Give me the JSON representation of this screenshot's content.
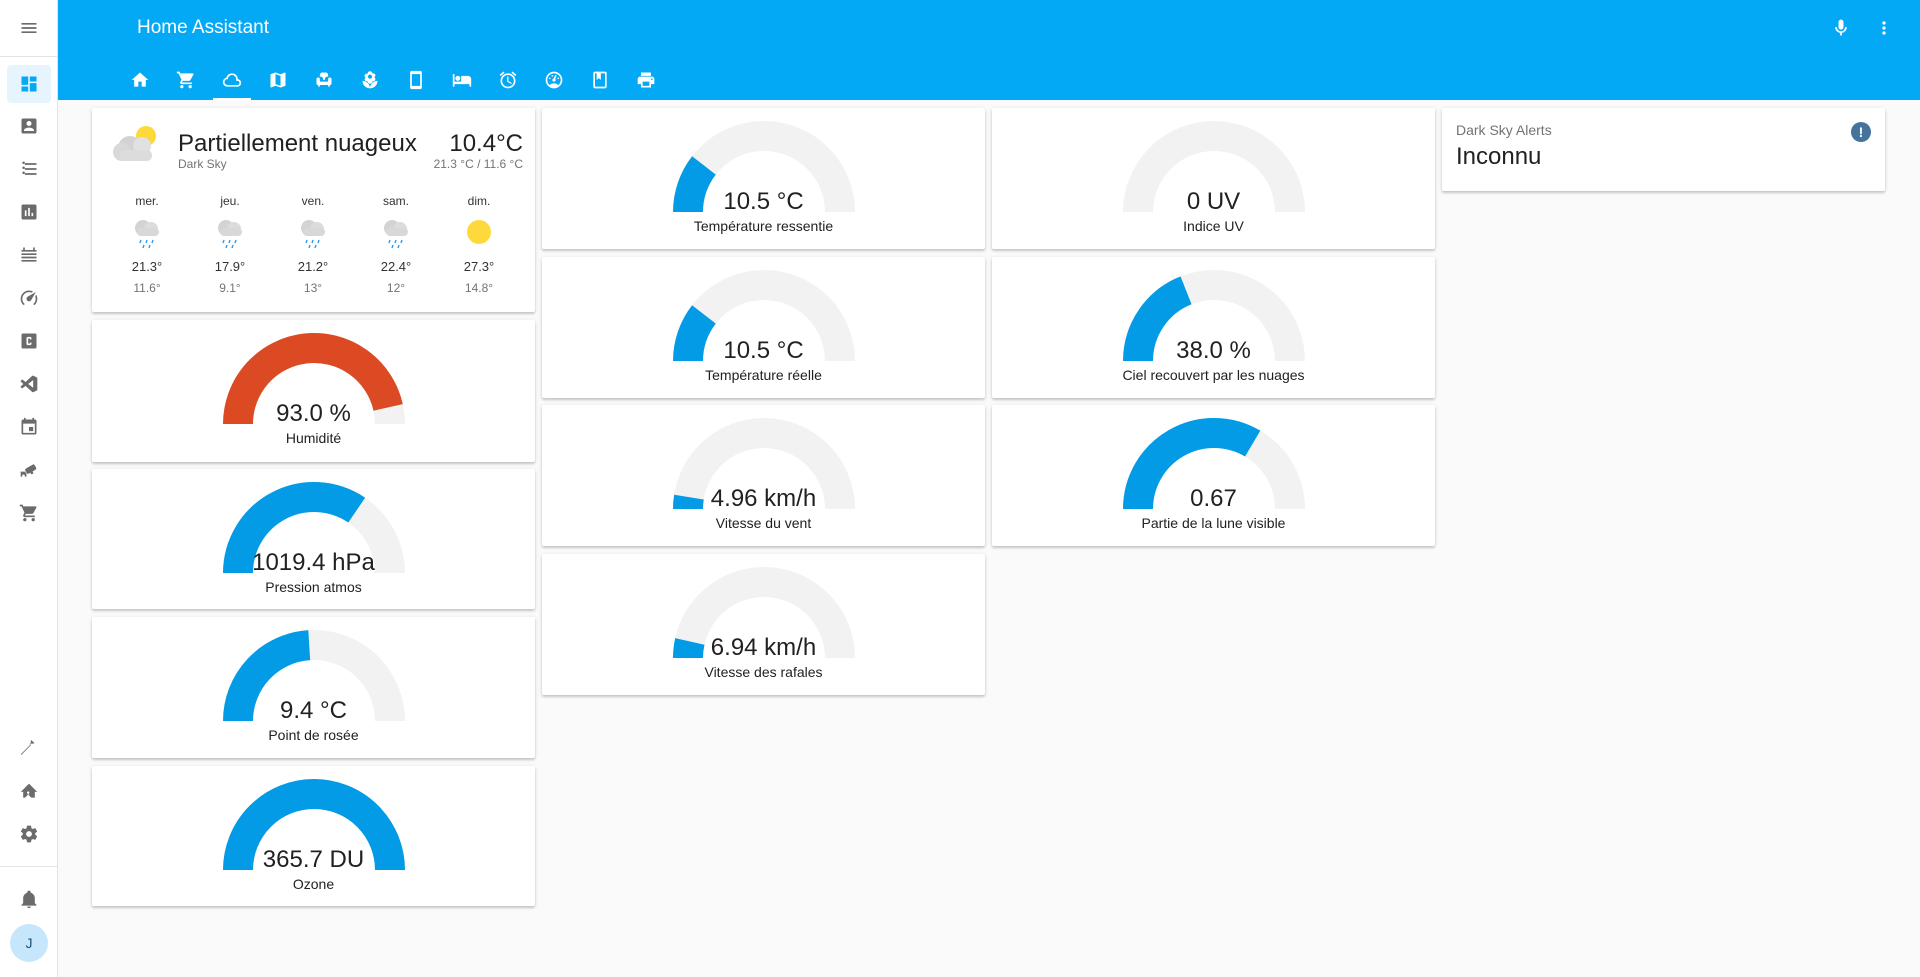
{
  "app": {
    "title": "Home Assistant"
  },
  "sidebar": {
    "items": [
      {
        "icon": "dashboard-icon"
      },
      {
        "icon": "account-box-icon"
      },
      {
        "icon": "list-icon"
      },
      {
        "icon": "chart-bar-icon"
      },
      {
        "icon": "memory-icon"
      },
      {
        "icon": "speedometer-icon"
      },
      {
        "icon": "alpha-c-box-icon"
      },
      {
        "icon": "vscode-icon"
      },
      {
        "icon": "calendar-icon"
      },
      {
        "icon": "cctv-icon"
      },
      {
        "icon": "cart-icon"
      }
    ],
    "bottom_items": [
      {
        "icon": "hammer-icon"
      },
      {
        "icon": "home-assistant-icon"
      },
      {
        "icon": "settings-icon"
      },
      {
        "icon": "bell-icon"
      }
    ],
    "user_initial": "J"
  },
  "header": {
    "tabs": [
      {
        "icon": "home-icon"
      },
      {
        "icon": "cart-icon"
      },
      {
        "icon": "cloud-icon",
        "active": true
      },
      {
        "icon": "map-icon"
      },
      {
        "icon": "sofa-icon"
      },
      {
        "icon": "flower-icon"
      },
      {
        "icon": "cellphone-icon"
      },
      {
        "icon": "bed-icon"
      },
      {
        "icon": "alarm-icon"
      },
      {
        "icon": "gauge-icon"
      },
      {
        "icon": "book-icon"
      },
      {
        "icon": "printer-icon"
      }
    ]
  },
  "weather": {
    "state": "Partiellement nuageux",
    "source": "Dark Sky",
    "temperature": "10.4°C",
    "hilo": "21.3 °C / 11.6 °C",
    "forecast": [
      {
        "day": "mer.",
        "icon": "rainy-icon",
        "high": "21.3°",
        "low": "11.6°"
      },
      {
        "day": "jeu.",
        "icon": "rainy-icon",
        "high": "17.9°",
        "low": "9.1°"
      },
      {
        "day": "ven.",
        "icon": "rainy-icon",
        "high": "21.2°",
        "low": "13°"
      },
      {
        "day": "sam.",
        "icon": "rainy-icon",
        "high": "22.4°",
        "low": "12°"
      },
      {
        "day": "dim.",
        "icon": "sunny-icon",
        "high": "27.3°",
        "low": "14.8°"
      }
    ]
  },
  "gauges": {
    "humidite": {
      "value": "93.0 %",
      "label": "Humidité",
      "fraction": 0.93,
      "color": "#db4a22"
    },
    "pression": {
      "value": "1019.4 hPa",
      "label": "Pression atmos",
      "fraction": 0.69,
      "color": "#039be5"
    },
    "rosee": {
      "value": "9.4 °C",
      "label": "Point de rosée",
      "fraction": 0.48,
      "color": "#039be5"
    },
    "ozone": {
      "value": "365.7 DU",
      "label": "Ozone",
      "fraction": 1.0,
      "color": "#039be5"
    },
    "ressentie": {
      "value": "10.5 °C",
      "label": "Température ressentie",
      "fraction": 0.21,
      "color": "#039be5"
    },
    "reelle": {
      "value": "10.5 °C",
      "label": "Température réelle",
      "fraction": 0.21,
      "color": "#039be5"
    },
    "vent": {
      "value": "4.96 km/h",
      "label": "Vitesse du vent",
      "fraction": 0.05,
      "color": "#039be5"
    },
    "rafales": {
      "value": "6.94 km/h",
      "label": "Vitesse des rafales",
      "fraction": 0.07,
      "color": "#039be5"
    },
    "uv": {
      "value": "0 UV",
      "label": "Indice UV",
      "fraction": 0.0,
      "color": "#039be5"
    },
    "nuages": {
      "value": "38.0 %",
      "label": "Ciel recouvert par les nuages",
      "fraction": 0.38,
      "color": "#039be5"
    },
    "lune": {
      "value": "0.67",
      "label": "Partie de la lune visible",
      "fraction": 0.67,
      "color": "#039be5"
    }
  },
  "alert": {
    "name": "Dark Sky Alerts",
    "state": "Inconnu",
    "icon": "alert-circle-icon"
  }
}
